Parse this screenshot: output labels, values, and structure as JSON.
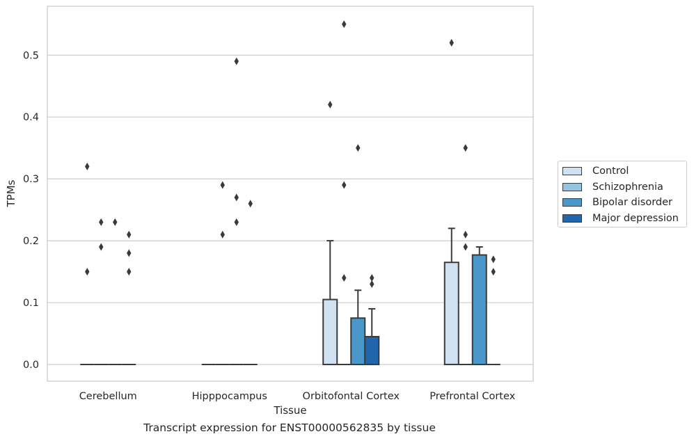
{
  "chart_data": {
    "type": "bar",
    "title": "",
    "caption": "Transcript expression for ENST00000562835 by tissue",
    "xlabel": "Tissue",
    "ylabel": "TPMs",
    "ylim": [
      -0.027,
      0.579
    ],
    "yticks": [
      "0.0",
      "0.1",
      "0.2",
      "0.3",
      "0.4",
      "0.5"
    ],
    "grid": true,
    "legend_position": "right",
    "categories": [
      "Cerebellum",
      "Hipppocampus",
      "Orbitofontal Cortex",
      "Prefrontal Cortex"
    ],
    "series": [
      {
        "name": "Control",
        "color": "#d0e1f2",
        "values": [
          0,
          0,
          0.105,
          0.165
        ],
        "error_upper": [
          null,
          null,
          0.2,
          0.22
        ],
        "outliers": [
          [
            0.15,
            0.32
          ],
          [],
          [
            0.42
          ],
          [
            0.52
          ]
        ]
      },
      {
        "name": "Schizophrenia",
        "color": "#94c4df",
        "values": [
          0,
          0,
          0,
          0
        ],
        "error_upper": [
          null,
          null,
          null,
          null
        ],
        "outliers": [
          [
            0.19,
            0.23
          ],
          [
            0.21,
            0.29
          ],
          [
            0.29,
            0.55,
            0.14
          ],
          [
            0.35,
            0.21,
            0.19
          ]
        ]
      },
      {
        "name": "Bipolar disorder",
        "color": "#4a98c9",
        "values": [
          0,
          0,
          0.075,
          0.177
        ],
        "error_upper": [
          null,
          null,
          0.12,
          0.19
        ],
        "outliers": [
          [
            0.23
          ],
          [
            0.23,
            0.27,
            0.49
          ],
          [
            0.35
          ],
          []
        ]
      },
      {
        "name": "Major depression",
        "color": "#2166ac",
        "values": [
          0,
          0,
          0.045,
          0
        ],
        "error_upper": [
          null,
          null,
          0.09,
          null
        ],
        "outliers": [
          [
            0.15,
            0.18,
            0.21
          ],
          [
            0.26
          ],
          [
            0.13,
            0.14
          ],
          [
            0.15,
            0.17
          ]
        ]
      }
    ]
  }
}
